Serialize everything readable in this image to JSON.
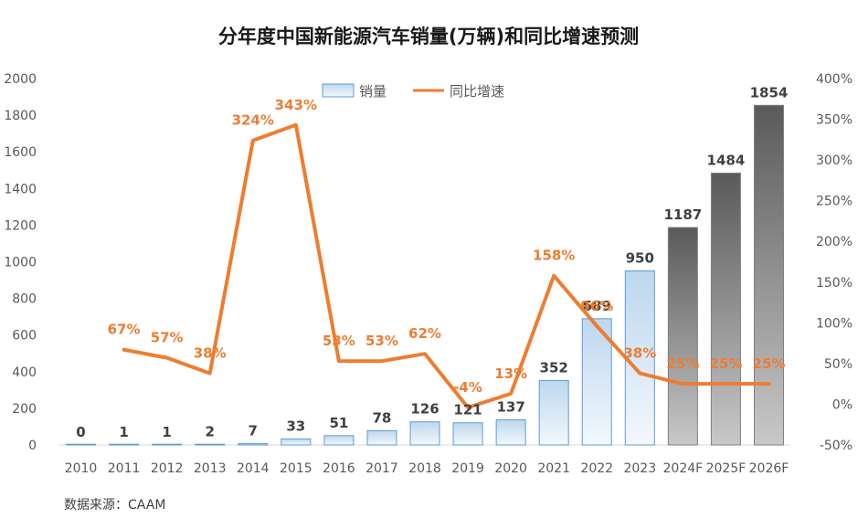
{
  "chart_data": {
    "type": "bar",
    "title": "分年度中国新能源汽车销量(万辆)和同比增速预测",
    "categories": [
      "2010",
      "2011",
      "2012",
      "2013",
      "2014",
      "2015",
      "2016",
      "2017",
      "2018",
      "2019",
      "2020",
      "2021",
      "2022",
      "2023",
      "2024F",
      "2025F",
      "2026F"
    ],
    "series": [
      {
        "name": "销量",
        "type": "bar",
        "axis": "left",
        "values": [
          0,
          1,
          1,
          2,
          7,
          33,
          51,
          78,
          126,
          121,
          137,
          352,
          689,
          950,
          1187,
          1484,
          1854
        ],
        "labels": [
          "0",
          "1",
          "1",
          "2",
          "7",
          "33",
          "51",
          "78",
          "126",
          "121",
          "137",
          "352",
          "689",
          "950",
          "1187",
          "1484",
          "1854"
        ],
        "forecast_from_index": 14
      },
      {
        "name": "同比增速",
        "type": "line",
        "axis": "right",
        "values": [
          null,
          67,
          57,
          38,
          324,
          343,
          53,
          53,
          62,
          -4,
          13,
          158,
          96,
          38,
          25,
          25,
          25
        ],
        "labels": [
          "",
          "67%",
          "57%",
          "38%",
          "324%",
          "343%",
          "53%",
          "53%",
          "62%",
          "-4%",
          "13%",
          "158%",
          "96%",
          "38%",
          "25%",
          "25%",
          "25%"
        ]
      }
    ],
    "y_left": {
      "min": 0,
      "max": 2000,
      "step": 200,
      "ticks": [
        "0",
        "200",
        "400",
        "600",
        "800",
        "1000",
        "1200",
        "1400",
        "1600",
        "1800",
        "2000"
      ]
    },
    "y_right": {
      "min": -50,
      "max": 400,
      "step": 50,
      "ticks": [
        "-50%",
        "0%",
        "50%",
        "100%",
        "150%",
        "200%",
        "250%",
        "300%",
        "350%",
        "400%"
      ]
    },
    "legend": {
      "position": "top-center",
      "bar_label": "销量",
      "line_label": "同比增速"
    },
    "grid": false,
    "colors": {
      "line": "#ED7D31",
      "bar_fill_light": "#BDD7EE",
      "bar_stroke": "#5B9BD5",
      "forecast_dark": "#595959",
      "forecast_light": "#BFBFBF",
      "axis": "#D9D9D9",
      "text": "#595959"
    }
  },
  "footer": {
    "source": "数据来源：CAAM"
  }
}
